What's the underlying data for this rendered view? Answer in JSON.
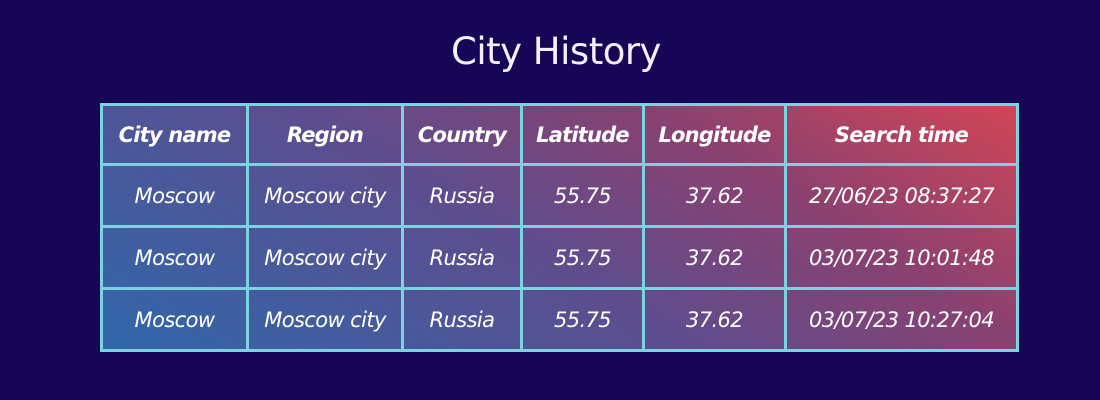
{
  "page": {
    "title": "City History"
  },
  "table": {
    "headers": [
      "City name",
      "Region",
      "Country",
      "Latitude",
      "Longitude",
      "Search time"
    ],
    "rows": [
      [
        "Moscow",
        "Moscow city",
        "Russia",
        "55.75",
        "37.62",
        "27/06/23 08:37:27"
      ],
      [
        "Moscow",
        "Moscow city",
        "Russia",
        "55.75",
        "37.62",
        "03/07/23 10:01:48"
      ],
      [
        "Moscow",
        "Moscow city",
        "Russia",
        "55.75",
        "37.62",
        "03/07/23 10:27:04"
      ]
    ]
  },
  "colors": {
    "background": "#170555",
    "border": "#7cd3df",
    "gradient_start": "#2f68ab",
    "gradient_end": "#d24655",
    "text": "#ffffff"
  }
}
